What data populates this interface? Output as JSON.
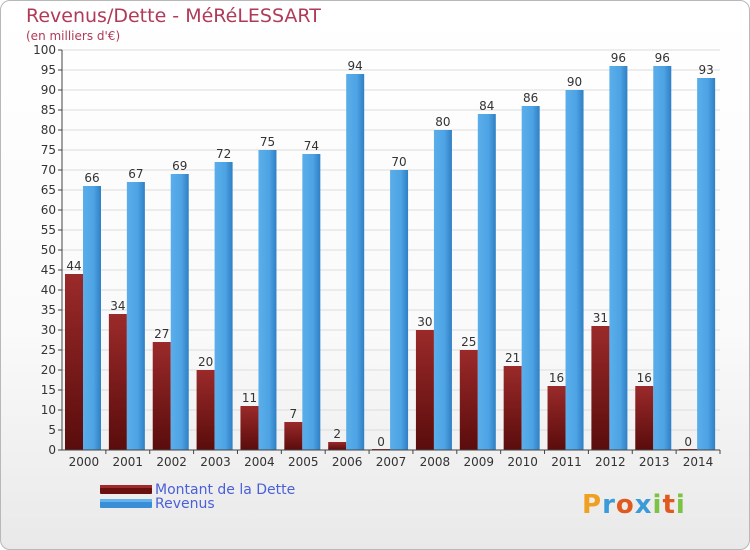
{
  "title": "Revenus/Dette - MéRéLESSART",
  "subtitle": "(en milliers d'€)",
  "brand": "Proxiti",
  "colors": {
    "title": "#b03a58",
    "legend_text": "#4a60d8",
    "debt": "#8b1a1a",
    "revenue": "#4da3e3",
    "axis": "#444444",
    "grid": "#dcdcdc"
  },
  "chart_data": {
    "type": "bar",
    "categories": [
      "2000",
      "2001",
      "2002",
      "2003",
      "2004",
      "2005",
      "2006",
      "2007",
      "2008",
      "2009",
      "2010",
      "2011",
      "2012",
      "2013",
      "2014"
    ],
    "series": [
      {
        "name": "Montant de la Dette",
        "values": [
          44,
          34,
          27,
          20,
          11,
          7,
          2,
          0,
          30,
          25,
          21,
          16,
          31,
          16,
          0
        ]
      },
      {
        "name": "Revenus",
        "values": [
          66,
          67,
          69,
          72,
          75,
          74,
          94,
          70,
          80,
          84,
          86,
          90,
          96,
          96,
          93
        ]
      }
    ],
    "title": "Revenus/Dette - MéRéLESSART",
    "xlabel": "",
    "ylabel": "",
    "ylim": [
      0,
      100
    ],
    "yticks": [
      0,
      5,
      10,
      15,
      20,
      25,
      30,
      35,
      40,
      45,
      50,
      55,
      60,
      65,
      70,
      75,
      80,
      85,
      90,
      95,
      100
    ],
    "grid": true,
    "legend": "bottom-left"
  }
}
